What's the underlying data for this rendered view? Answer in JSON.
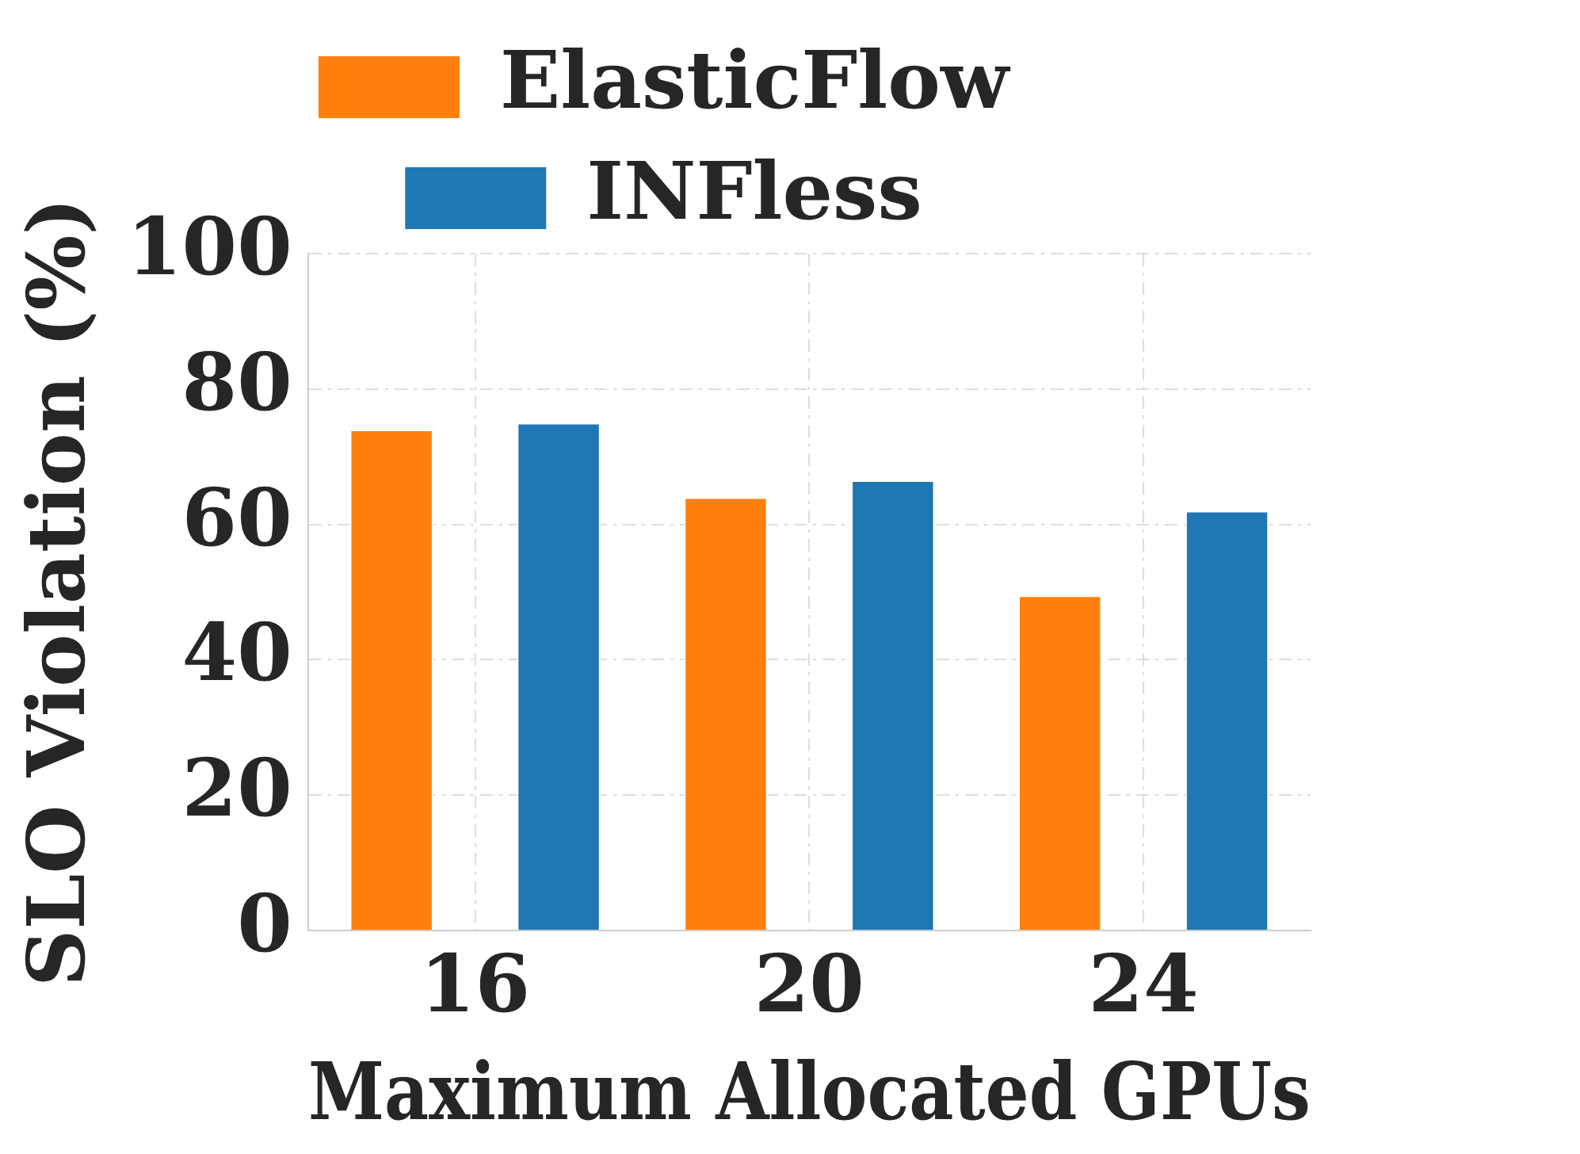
{
  "chart_data": {
    "type": "bar",
    "xlabel": "Maximum Allocated GPUs",
    "ylabel": "SLO Violation (%)",
    "categories": [
      "16",
      "20",
      "24"
    ],
    "series": [
      {
        "name": "ElasticFlow",
        "color": "#ff7f0e",
        "values": [
          74,
          64,
          49.5
        ]
      },
      {
        "name": "INFless",
        "color": "#1f77b4",
        "values": [
          75,
          66.5,
          62
        ]
      }
    ],
    "ylim": [
      0,
      100
    ],
    "yticks": [
      0,
      20,
      40,
      60,
      80,
      100
    ],
    "grid": true,
    "legend": "top"
  }
}
